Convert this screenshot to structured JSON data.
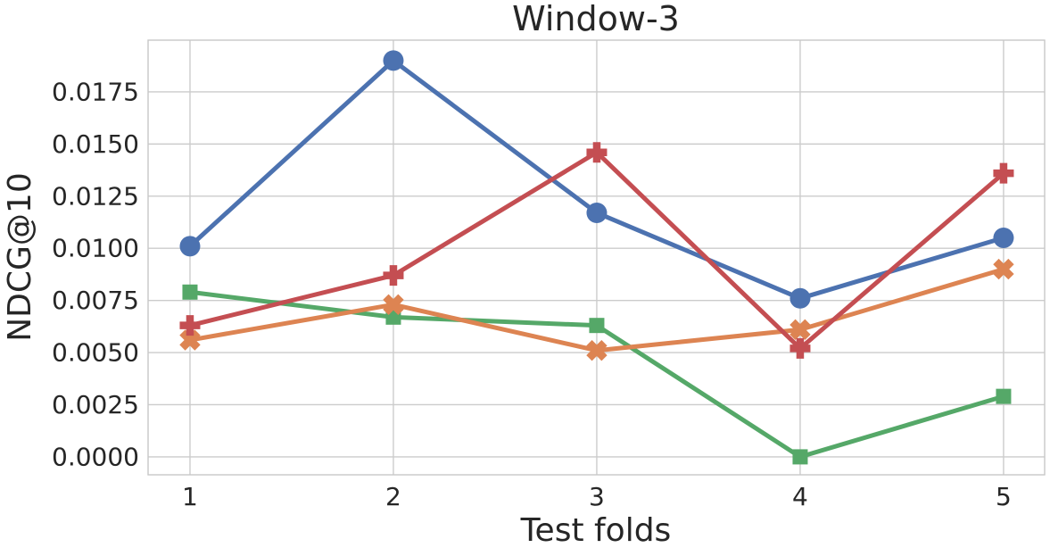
{
  "chart_data": {
    "type": "line",
    "title": "Window-3",
    "xlabel": "Test folds",
    "ylabel": "NDCG@10",
    "x": [
      1,
      2,
      3,
      4,
      5
    ],
    "xtick_labels": [
      "1",
      "2",
      "3",
      "4",
      "5"
    ],
    "ytick_values": [
      0.0,
      0.0025,
      0.005,
      0.0075,
      0.01,
      0.0125,
      0.015,
      0.0175
    ],
    "ytick_labels": [
      "0.0000",
      "0.0025",
      "0.0050",
      "0.0075",
      "0.0100",
      "0.0125",
      "0.0150",
      "0.0175"
    ],
    "xlim": [
      0.794,
      5.202
    ],
    "ylim": [
      -0.00086,
      0.01998
    ],
    "grid": true,
    "legend": "none",
    "series": [
      {
        "id": "blue-circle",
        "marker": "circle",
        "color": "#4C72B0",
        "values": [
          0.0101,
          0.019,
          0.0117,
          0.0076,
          0.0105
        ]
      },
      {
        "id": "green-square",
        "marker": "square",
        "color": "#55A868",
        "values": [
          0.0079,
          0.0067,
          0.0063,
          0.0,
          0.0029
        ]
      },
      {
        "id": "orange-x",
        "marker": "x",
        "color": "#DD8452",
        "values": [
          0.0056,
          0.0073,
          0.0051,
          0.0061,
          0.009
        ]
      },
      {
        "id": "red-plus",
        "marker": "plus",
        "color": "#C44E52",
        "values": [
          0.0063,
          0.0087,
          0.0146,
          0.0052,
          0.0136
        ]
      }
    ]
  },
  "style": {
    "background_color": "#ffffff",
    "grid_color": "#cccccc",
    "frame_color": "#c8c8c8",
    "text_color": "#262626"
  }
}
